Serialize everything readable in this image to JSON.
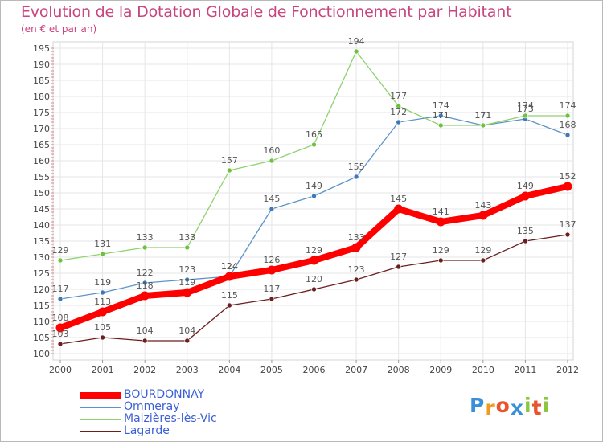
{
  "header": {
    "title": "Evolution de la Dotation Globale de Fonctionnement par Habitant",
    "subtitle": "(en € et par an)"
  },
  "logo": {
    "text": "Proxiti",
    "letters": [
      "P",
      "r",
      "o",
      "x",
      "i",
      "t",
      "i"
    ],
    "colors": [
      "#3a8fd9",
      "#f29a1f",
      "#e8542c",
      "#3a8fd9",
      "#8cc63f",
      "#e8542c",
      "#8cc63f"
    ]
  },
  "chart_data": {
    "type": "line",
    "title": "Evolution de la Dotation Globale de Fonctionnement par Habitant",
    "subtitle": "(en € et par an)",
    "xlabel": "",
    "ylabel": "",
    "categories": [
      "2000",
      "2001",
      "2002",
      "2003",
      "2004",
      "2005",
      "2006",
      "2007",
      "2008",
      "2009",
      "2010",
      "2011",
      "2012"
    ],
    "ylim": [
      100,
      195
    ],
    "yticks": [
      100,
      105,
      110,
      115,
      120,
      125,
      130,
      135,
      140,
      145,
      150,
      155,
      160,
      165,
      170,
      175,
      180,
      185,
      190,
      195
    ],
    "grid": true,
    "legend_position": "bottom-left",
    "series": [
      {
        "name": "Lagarde",
        "color": "#6b1e1e",
        "marker": "#6b1e1e",
        "emphasis": false,
        "values": [
          103,
          105,
          104,
          104,
          115,
          117,
          120,
          123,
          127,
          129,
          129,
          135,
          137
        ]
      },
      {
        "name": "Ommeray",
        "color": "#5d94c8",
        "marker": "#3f78b5",
        "emphasis": false,
        "values": [
          117,
          119,
          122,
          123,
          124,
          145,
          149,
          155,
          172,
          174,
          171,
          173,
          168
        ]
      },
      {
        "name": "Maizières-lès-Vic",
        "color": "#8fd16e",
        "marker": "#6cc23f",
        "emphasis": false,
        "values": [
          129,
          131,
          133,
          133,
          157,
          160,
          165,
          194,
          177,
          171,
          171,
          174,
          174
        ]
      },
      {
        "name": "BOURDONNAY",
        "color": "#ff0000",
        "marker": "#ff0000",
        "emphasis": true,
        "values": [
          108,
          113,
          118,
          119,
          124,
          126,
          129,
          133,
          145,
          141,
          143,
          149,
          152
        ]
      }
    ],
    "legend": [
      {
        "name": "BOURDONNAY",
        "color": "#ff0000",
        "text_color": "#3b5fd6"
      },
      {
        "name": "Ommeray",
        "color": "#5d94c8",
        "text_color": "#3b5fd6"
      },
      {
        "name": "Maizières-lès-Vic",
        "color": "#8fd16e",
        "text_color": "#3b5fd6"
      },
      {
        "name": "Lagarde",
        "color": "#6b1e1e",
        "text_color": "#3b5fd6"
      }
    ]
  }
}
